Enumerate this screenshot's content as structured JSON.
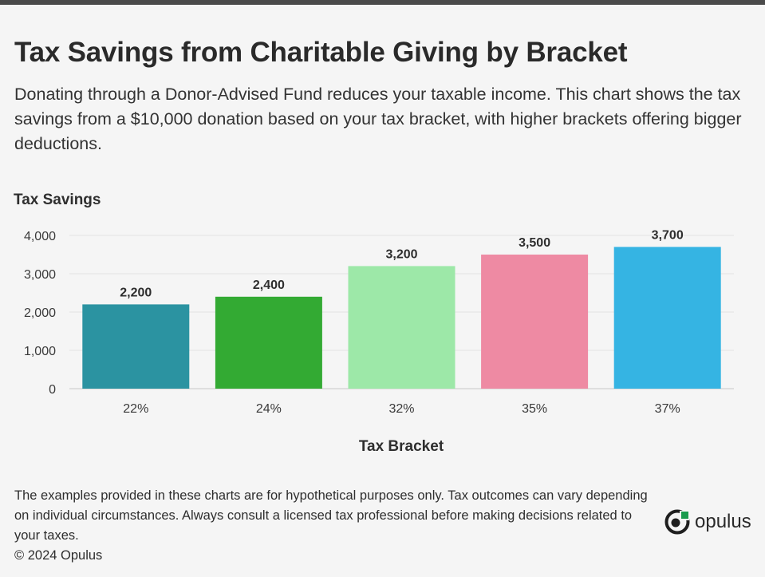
{
  "header": {
    "title": "Tax Savings from Charitable Giving by Bracket",
    "subtitle": "Donating through a Donor-Advised Fund reduces your taxable income. This chart shows the tax savings from a $10,000 donation based on your tax bracket, with higher brackets offering bigger deductions."
  },
  "chart_data": {
    "type": "bar",
    "title": "Tax Savings from Charitable Giving by Bracket",
    "ylabel": "Tax Savings",
    "xlabel": "Tax Bracket",
    "categories": [
      "22%",
      "24%",
      "32%",
      "35%",
      "37%"
    ],
    "values": [
      2200,
      2400,
      3200,
      3500,
      3700
    ],
    "value_labels": [
      "2,200",
      "2,400",
      "3,200",
      "3,500",
      "3,700"
    ],
    "colors": [
      "#2b93a1",
      "#33aa33",
      "#9de8a8",
      "#ee8aa3",
      "#35b4e3"
    ],
    "ylim": [
      0,
      4000
    ],
    "yticks": [
      0,
      1000,
      2000,
      3000,
      4000
    ],
    "ytick_labels": [
      "0",
      "1,000",
      "2,000",
      "3,000",
      "4,000"
    ],
    "grid": true
  },
  "footer": {
    "disclaimer": "The examples provided in these charts are for hypothetical purposes only. Tax outcomes can vary depending on individual circumstances. Always consult a licensed tax professional before making decisions related to your taxes.",
    "copyright": "© 2024 Opulus",
    "brand_name": "opulus",
    "logo_icon": "opulus-logo-icon",
    "brand_color": "#1a9b4e"
  }
}
